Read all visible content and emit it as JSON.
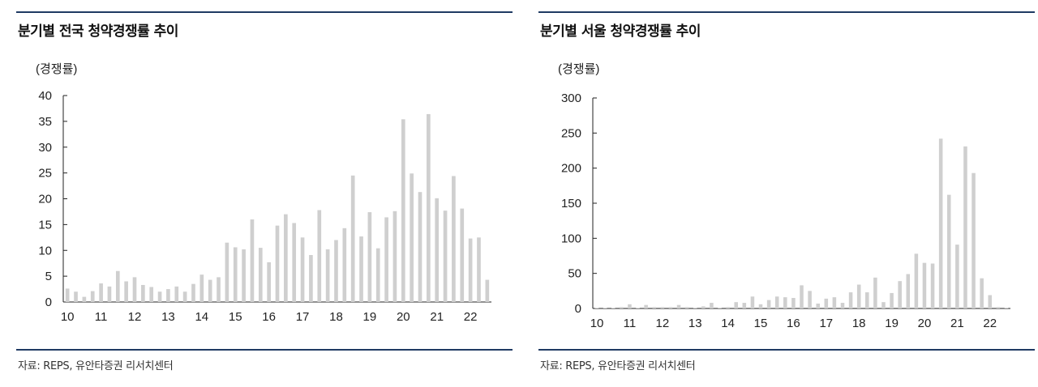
{
  "charts": [
    {
      "title": "분기별 전국 청약경쟁률 추이",
      "source": "자료: REPS, 유안타증권 리서치센터",
      "chart_data": {
        "type": "bar",
        "ylabel": "(경쟁률)",
        "ylim": [
          0,
          40
        ],
        "yticks": [
          0,
          5,
          10,
          15,
          20,
          25,
          30,
          35,
          40
        ],
        "xticks": [
          "10",
          "11",
          "12",
          "13",
          "14",
          "15",
          "16",
          "17",
          "18",
          "19",
          "20",
          "21",
          "22"
        ],
        "values": [
          2.6,
          2.0,
          1.0,
          2.1,
          3.6,
          3.0,
          6.0,
          4.0,
          4.8,
          3.3,
          2.9,
          2.0,
          2.5,
          3.0,
          2.0,
          3.5,
          5.3,
          4.3,
          4.8,
          11.5,
          10.6,
          10.2,
          16.0,
          10.5,
          7.7,
          14.8,
          17.0,
          15.3,
          12.5,
          9.1,
          17.8,
          10.2,
          12.0,
          14.3,
          24.5,
          12.7,
          17.4,
          10.4,
          16.4,
          17.6,
          35.4,
          24.9,
          21.3,
          36.4,
          20.1,
          17.7,
          24.4,
          18.1,
          12.3,
          12.5,
          4.3
        ],
        "color": "#cfcfcf",
        "grid": false
      }
    },
    {
      "title": "분기별 서울 청약경쟁률 추이",
      "source": "자료: REPS, 유안타증권 리서치센터",
      "chart_data": {
        "type": "bar",
        "ylabel": "(경쟁률)",
        "ylim": [
          0,
          300
        ],
        "yticks": [
          0,
          50,
          100,
          150,
          200,
          250,
          300
        ],
        "xticks": [
          "10",
          "11",
          "12",
          "13",
          "14",
          "15",
          "16",
          "17",
          "18",
          "19",
          "20",
          "21",
          "22"
        ],
        "values": [
          0.5,
          0.5,
          0.5,
          2,
          6,
          0.5,
          5,
          2,
          2,
          2,
          5,
          2,
          1,
          3,
          8,
          1,
          2,
          9,
          8,
          17,
          6,
          12,
          17,
          16,
          15,
          33,
          25,
          7,
          14,
          16,
          8,
          23,
          34,
          23,
          44,
          9,
          22,
          39,
          49,
          78,
          65,
          64,
          242,
          162,
          91,
          231,
          193,
          43,
          19,
          2,
          1
        ],
        "color": "#cfcfcf",
        "grid": false
      }
    }
  ]
}
